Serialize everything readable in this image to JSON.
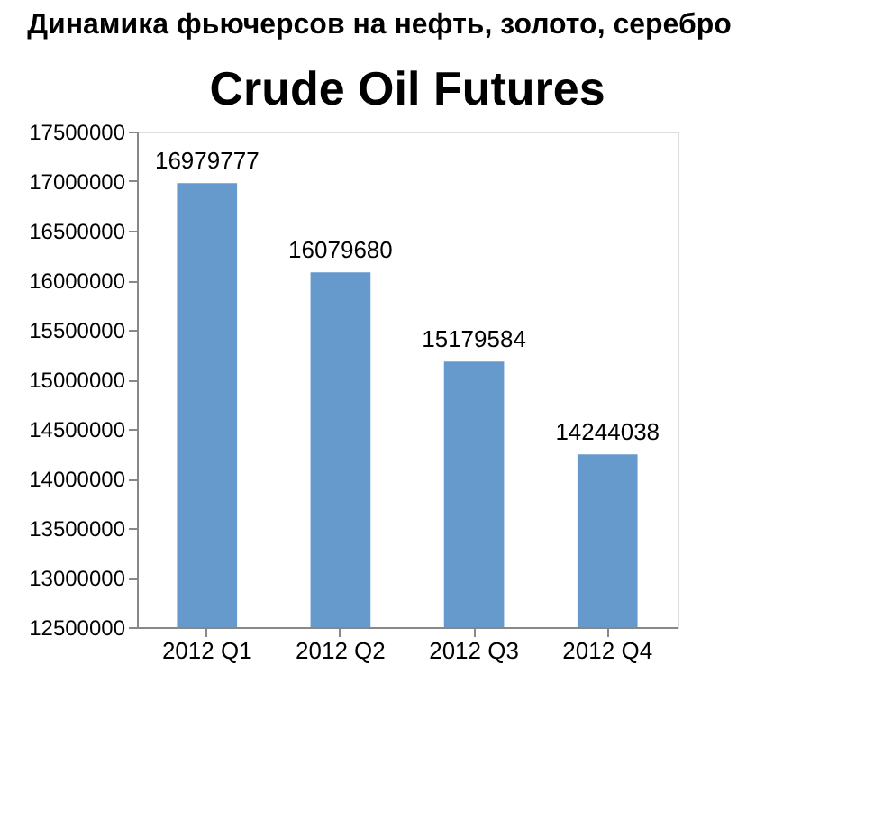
{
  "chart_data": {
    "type": "bar",
    "title": "Динамика фьючерсов на нефть, золото, серебро",
    "subtitle": "Crude Oil Futures",
    "categories": [
      "2012 Q1",
      "2012 Q2",
      "2012 Q3",
      "2012 Q4"
    ],
    "values": [
      16979777,
      16079680,
      15179584,
      14244038
    ],
    "color": "#6699cc",
    "ylim": [
      12500000,
      17500000
    ],
    "yticks": [
      12500000,
      13000000,
      13500000,
      14000000,
      14500000,
      15000000,
      15500000,
      16000000,
      16500000,
      17000000,
      17500000
    ],
    "grid": false,
    "data_labels": true
  }
}
